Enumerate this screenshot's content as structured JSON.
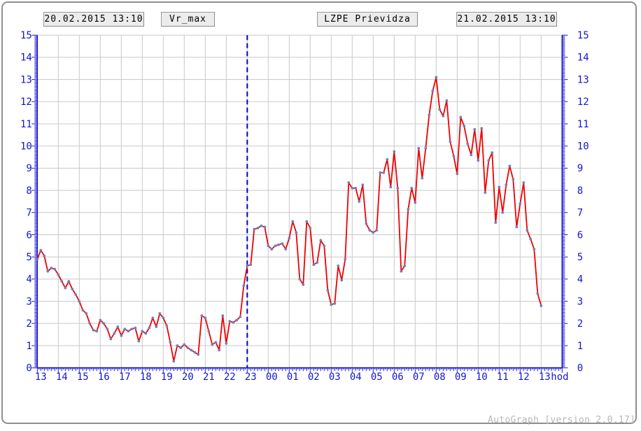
{
  "header": {
    "start_datetime": "20.02.2015 13:10",
    "series_label": "Vr_max",
    "station": "LZPE Prievidza",
    "end_datetime": "21.02.2015 13:10"
  },
  "footer": {
    "credit": "AutoGraph [version 2.0.17]"
  },
  "colors": {
    "axis": "#1515cf",
    "grid": "#c8c8c8",
    "line": "#ee0000",
    "marker": "#7080bc",
    "day_separator": "#0000cc",
    "credit_text": "#b8b8b8",
    "box_background": "#ececec",
    "frame_border": "#8f8f8f"
  },
  "chart_data": {
    "type": "line",
    "title": "",
    "station": "LZPE Prievidza",
    "series_name": "Vr_max",
    "x_unit_label": "hod",
    "x_range": [
      "20.02.2015 13:10",
      "21.02.2015 13:10"
    ],
    "x_hour_labels": [
      "13",
      "14",
      "15",
      "16",
      "17",
      "18",
      "19",
      "20",
      "21",
      "22",
      "23",
      "00",
      "01",
      "02",
      "03",
      "04",
      "05",
      "06",
      "07",
      "08",
      "09",
      "10",
      "11",
      "12",
      "13"
    ],
    "y_ticks": [
      0,
      1,
      2,
      3,
      4,
      5,
      6,
      7,
      8,
      9,
      10,
      11,
      12,
      13,
      14,
      15
    ],
    "ylim": [
      0,
      15
    ],
    "grid": true,
    "legend_position": "none",
    "day_separator_time": "23:00",
    "sample_interval_minutes": 10,
    "times": [
      "13:00",
      "13:10",
      "13:20",
      "13:30",
      "13:40",
      "13:50",
      "14:00",
      "14:10",
      "14:20",
      "14:30",
      "14:40",
      "14:50",
      "15:00",
      "15:10",
      "15:20",
      "15:30",
      "15:40",
      "15:50",
      "16:00",
      "16:10",
      "16:20",
      "16:30",
      "16:40",
      "16:50",
      "17:00",
      "17:10",
      "17:20",
      "17:30",
      "17:40",
      "17:50",
      "18:00",
      "18:10",
      "18:20",
      "18:30",
      "18:40",
      "18:50",
      "19:00",
      "19:10",
      "19:20",
      "19:30",
      "19:40",
      "19:50",
      "20:00",
      "20:10",
      "20:20",
      "20:30",
      "20:40",
      "20:50",
      "21:00",
      "21:10",
      "21:20",
      "21:30",
      "21:40",
      "21:50",
      "22:00",
      "22:10",
      "22:20",
      "22:30",
      "22:40",
      "22:50",
      "23:00",
      "23:10",
      "23:20",
      "23:30",
      "23:40",
      "23:50",
      "00:00",
      "00:10",
      "00:20",
      "00:30",
      "00:40",
      "00:50",
      "01:00",
      "01:10",
      "01:20",
      "01:30",
      "01:40",
      "01:50",
      "02:00",
      "02:10",
      "02:20",
      "02:30",
      "02:40",
      "02:50",
      "03:00",
      "03:10",
      "03:20",
      "03:30",
      "03:40",
      "03:50",
      "04:00",
      "04:10",
      "04:20",
      "04:30",
      "04:40",
      "04:50",
      "05:00",
      "05:10",
      "05:20",
      "05:30",
      "05:40",
      "05:50",
      "06:00",
      "06:10",
      "06:20",
      "06:30",
      "06:40",
      "06:50",
      "07:00",
      "07:10",
      "07:20",
      "07:30",
      "07:40",
      "07:50",
      "08:00",
      "08:10",
      "08:20",
      "08:30",
      "08:40",
      "08:50",
      "09:00",
      "09:10",
      "09:20",
      "09:30",
      "09:40",
      "09:50",
      "10:00",
      "10:10",
      "10:20",
      "10:30",
      "10:40",
      "10:50",
      "11:00",
      "11:10",
      "11:20",
      "11:30",
      "11:40",
      "11:50",
      "12:00",
      "12:10",
      "12:20",
      "12:30",
      "12:40",
      "12:50",
      "13:00"
    ],
    "values": [
      4.9,
      5.3,
      5.05,
      4.35,
      4.5,
      4.45,
      4.2,
      3.9,
      3.6,
      3.9,
      3.55,
      3.3,
      3.0,
      2.6,
      2.45,
      2.0,
      1.7,
      1.65,
      2.15,
      2.0,
      1.75,
      1.3,
      1.55,
      1.85,
      1.45,
      1.75,
      1.65,
      1.75,
      1.8,
      1.2,
      1.65,
      1.55,
      1.8,
      2.25,
      1.85,
      2.45,
      2.25,
      1.9,
      1.15,
      0.3,
      1.0,
      0.9,
      1.05,
      0.9,
      0.8,
      0.7,
      0.6,
      2.35,
      2.25,
      1.65,
      1.05,
      1.15,
      0.8,
      2.35,
      1.1,
      2.1,
      2.05,
      2.15,
      2.3,
      3.7,
      4.6,
      4.65,
      6.25,
      6.3,
      6.4,
      6.35,
      5.5,
      5.35,
      5.5,
      5.55,
      5.6,
      5.35,
      5.85,
      6.6,
      6.1,
      4.0,
      3.75,
      6.6,
      6.3,
      4.65,
      4.75,
      5.75,
      5.5,
      3.5,
      2.85,
      2.9,
      4.6,
      3.95,
      4.9,
      8.35,
      8.1,
      8.1,
      7.5,
      8.25,
      6.5,
      6.2,
      6.1,
      6.2,
      8.8,
      8.8,
      9.4,
      8.15,
      9.75,
      8.1,
      4.35,
      4.6,
      7.15,
      8.1,
      7.45,
      9.9,
      8.55,
      9.9,
      11.4,
      12.48,
      13.1,
      11.65,
      11.35,
      12.05,
      10.2,
      9.55,
      8.75,
      11.3,
      10.9,
      10.1,
      9.6,
      10.75,
      9.35,
      10.8,
      7.9,
      9.35,
      9.7,
      6.55,
      8.15,
      7.0,
      8.25,
      9.1,
      8.5,
      6.35,
      7.4,
      8.35,
      6.2,
      5.8,
      5.35,
      3.35,
      2.8
    ]
  }
}
